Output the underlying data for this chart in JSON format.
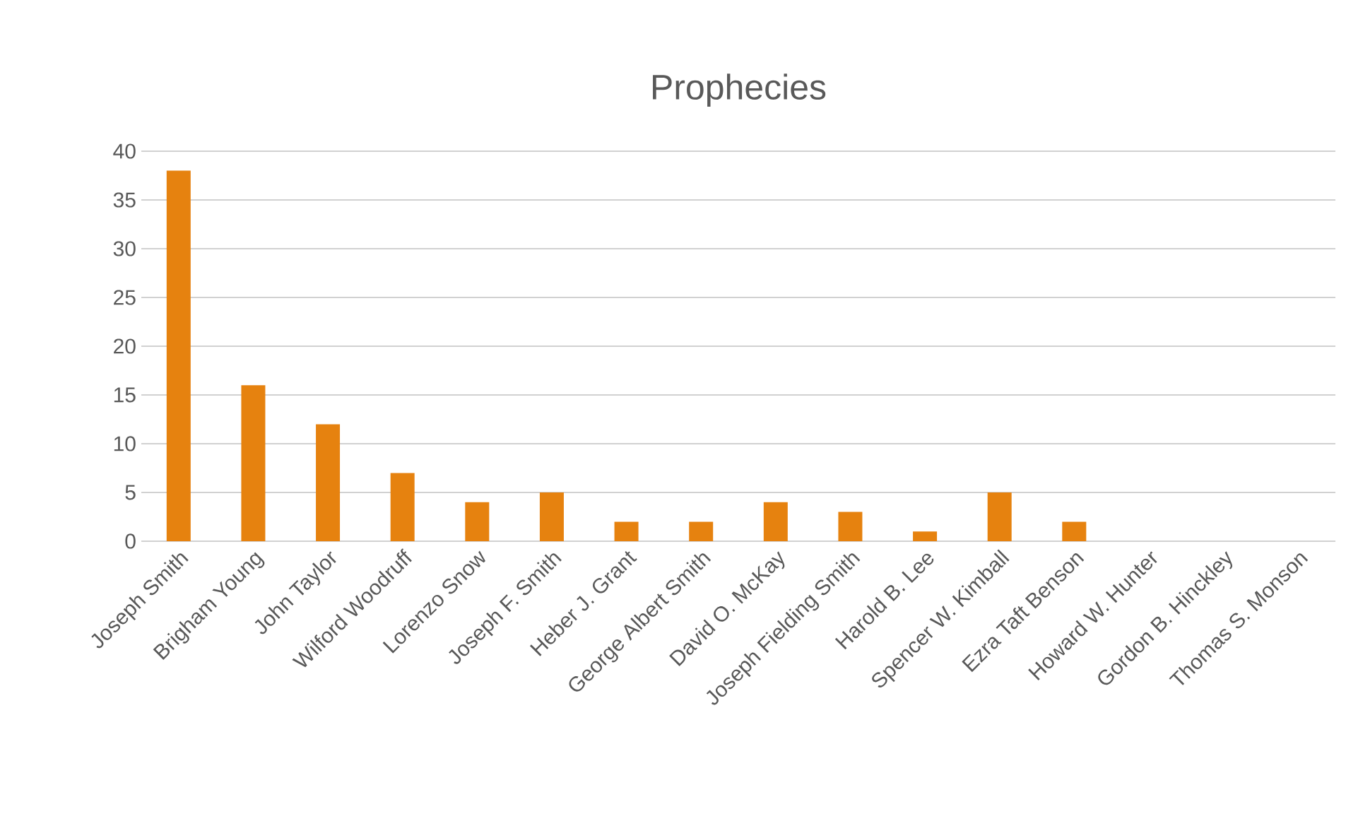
{
  "chart_data": {
    "type": "bar",
    "title": "Prophecies",
    "categories": [
      "Joseph Smith",
      "Brigham Young",
      "John Taylor",
      "Wilford Woodruff",
      "Lorenzo Snow",
      "Joseph F. Smith",
      "Heber J. Grant",
      "George Albert Smith",
      "David O. McKay",
      "Joseph Fielding Smith",
      "Harold B. Lee",
      "Spencer W. Kimball",
      "Ezra Taft Benson",
      "Howard W. Hunter",
      "Gordon B. Hinckley",
      "Thomas S. Monson"
    ],
    "values": [
      38,
      16,
      12,
      7,
      4,
      5,
      2,
      2,
      4,
      3,
      1,
      5,
      2,
      0,
      0,
      0
    ],
    "color": "#e6820f",
    "ylim": [
      0,
      40
    ],
    "yticks": [
      0,
      5,
      10,
      15,
      20,
      25,
      30,
      35,
      40
    ],
    "grid": "y"
  }
}
